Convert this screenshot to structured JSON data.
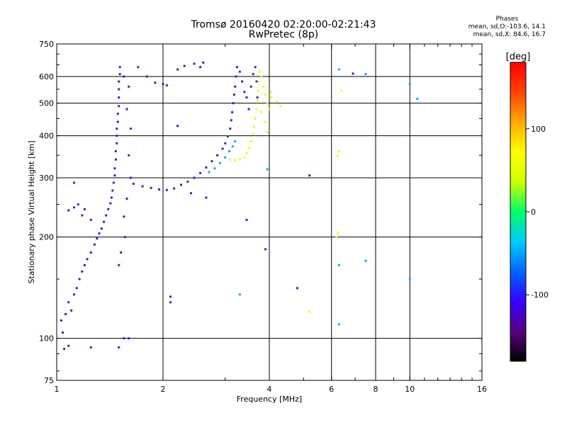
{
  "title": {
    "line1": "Tromsø 20160420 02:20:00-02:21:43",
    "line2": "RwPretec (8p)"
  },
  "stats_legend": {
    "heading": "Phases",
    "o_line": "mean, sd,O:-103.6, 14.1",
    "x_line": "mean, sd,X:  84.6, 16.7"
  },
  "chart_data": {
    "type": "scatter",
    "xlabel": "Frequency [MHz]",
    "ylabel": "Stationary phase Virtual Height [km]",
    "xscale": "log",
    "yscale": "log",
    "xlim": [
      1,
      16
    ],
    "ylim": [
      75,
      750
    ],
    "xticks": [
      1,
      2,
      4,
      6,
      8,
      10,
      16
    ],
    "xtick_labels": [
      "1",
      "2",
      "4",
      "6",
      "8",
      "10",
      "16"
    ],
    "xgrid": [
      2,
      4,
      6,
      8,
      10
    ],
    "yticks": [
      75,
      100,
      200,
      300,
      400,
      500,
      600,
      750
    ],
    "ytick_labels": [
      "75",
      "100",
      "200",
      "300",
      "400",
      "500",
      "600",
      "750"
    ],
    "ygrid": [
      100,
      200,
      300,
      400,
      500,
      600
    ],
    "grid": true,
    "colorbar": {
      "label": "[deg]",
      "range": [
        -180,
        180
      ],
      "ticks": [
        100,
        0,
        -100
      ],
      "tick_labels": [
        "100",
        "0",
        "-100"
      ],
      "colormap": [
        "#000000",
        "#5a0080",
        "#3300ff",
        "#0066ff",
        "#00ccff",
        "#00ff66",
        "#ccff00",
        "#ffff00",
        "#ffaa00",
        "#ff4400",
        "#ff0000"
      ]
    },
    "point_color_o": "#3a1fd0",
    "point_color_x": "#e8ff1a",
    "point_color_transition": "#1aa0ff",
    "series": [
      {
        "points": [
          [
            1.05,
            93
          ],
          [
            1.08,
            95
          ],
          [
            1.04,
            104
          ],
          [
            1.03,
            113
          ],
          [
            1.06,
            118
          ],
          [
            1.1,
            121
          ],
          [
            1.08,
            128
          ],
          [
            1.12,
            135
          ],
          [
            1.14,
            141
          ],
          [
            1.16,
            150
          ],
          [
            1.18,
            158
          ],
          [
            1.2,
            165
          ],
          [
            1.22,
            172
          ],
          [
            1.25,
            180
          ],
          [
            1.28,
            190
          ],
          [
            1.3,
            198
          ],
          [
            1.32,
            205
          ],
          [
            1.34,
            212
          ],
          [
            1.36,
            222
          ],
          [
            1.38,
            232
          ],
          [
            1.4,
            242
          ],
          [
            1.42,
            252
          ],
          [
            1.43,
            262
          ],
          [
            1.44,
            275
          ],
          [
            1.45,
            290
          ],
          [
            1.46,
            305
          ],
          [
            1.46,
            320
          ],
          [
            1.47,
            340
          ],
          [
            1.47,
            360
          ],
          [
            1.48,
            380
          ],
          [
            1.48,
            400
          ],
          [
            1.48,
            420
          ],
          [
            1.49,
            440
          ],
          [
            1.49,
            465
          ],
          [
            1.5,
            490
          ],
          [
            1.5,
            520
          ],
          [
            1.5,
            550
          ],
          [
            1.5,
            580
          ],
          [
            1.51,
            610
          ],
          [
            1.51,
            640
          ],
          [
            1.55,
            600
          ],
          [
            1.6,
            560
          ],
          [
            1.58,
            480
          ],
          [
            1.62,
            420
          ],
          [
            1.6,
            350
          ],
          [
            1.62,
            300
          ],
          [
            1.58,
            260
          ],
          [
            1.55,
            230
          ],
          [
            1.56,
            200
          ],
          [
            1.52,
            180
          ],
          [
            1.5,
            165
          ],
          [
            1.08,
            240
          ],
          [
            1.12,
            245
          ],
          [
            1.15,
            250
          ],
          [
            1.2,
            242
          ],
          [
            1.18,
            232
          ],
          [
            1.25,
            225
          ],
          [
            1.65,
            288
          ],
          [
            1.75,
            283
          ],
          [
            1.85,
            280
          ],
          [
            1.95,
            277
          ],
          [
            2.05,
            276
          ],
          [
            2.15,
            279
          ],
          [
            2.25,
            286
          ],
          [
            2.35,
            292
          ],
          [
            2.45,
            300
          ],
          [
            2.55,
            310
          ],
          [
            2.65,
            322
          ],
          [
            2.75,
            336
          ],
          [
            2.85,
            350
          ],
          [
            2.95,
            366
          ],
          [
            3.0,
            380
          ],
          [
            3.05,
            398
          ],
          [
            3.1,
            420
          ],
          [
            3.12,
            445
          ],
          [
            3.14,
            470
          ],
          [
            3.16,
            500
          ],
          [
            3.18,
            530
          ],
          [
            3.2,
            560
          ],
          [
            3.22,
            600
          ],
          [
            3.24,
            640
          ],
          [
            3.3,
            620
          ],
          [
            3.35,
            580
          ],
          [
            3.4,
            540
          ],
          [
            3.45,
            520
          ],
          [
            3.5,
            480
          ],
          [
            3.55,
            560
          ],
          [
            3.6,
            610
          ],
          [
            3.65,
            640
          ],
          [
            3.68,
            580
          ],
          [
            3.7,
            520
          ],
          [
            1.7,
            640
          ],
          [
            1.8,
            600
          ],
          [
            1.9,
            575
          ],
          [
            2.0,
            570
          ],
          [
            2.05,
            565
          ],
          [
            2.2,
            630
          ],
          [
            2.3,
            645
          ],
          [
            2.45,
            655
          ],
          [
            2.6,
            660
          ],
          [
            2.55,
            640
          ],
          [
            1.25,
            94
          ],
          [
            1.5,
            94
          ],
          [
            1.55,
            100
          ],
          [
            1.6,
            100
          ],
          [
            2.1,
            133
          ],
          [
            2.1,
            128
          ],
          [
            5.2,
            305
          ],
          [
            6.9,
            612
          ],
          [
            3.45,
            225
          ],
          [
            3.9,
            184
          ],
          [
            4.8,
            141
          ],
          [
            2.4,
            270
          ],
          [
            2.65,
            262
          ],
          [
            2.2,
            428
          ],
          [
            1.12,
            290
          ]
        ]
      },
      {
        "points": [
          [
            3.1,
            340
          ],
          [
            3.2,
            338
          ],
          [
            3.3,
            340
          ],
          [
            3.4,
            345
          ],
          [
            3.45,
            355
          ],
          [
            3.5,
            368
          ],
          [
            3.55,
            385
          ],
          [
            3.6,
            405
          ],
          [
            3.62,
            425
          ],
          [
            3.65,
            450
          ],
          [
            3.68,
            480
          ],
          [
            3.7,
            510
          ],
          [
            3.72,
            545
          ],
          [
            3.74,
            580
          ],
          [
            3.75,
            620
          ],
          [
            3.8,
            600
          ],
          [
            3.85,
            560
          ],
          [
            3.9,
            530
          ],
          [
            3.95,
            500
          ],
          [
            4.0,
            480
          ],
          [
            4.05,
            520
          ],
          [
            4.2,
            505
          ],
          [
            4.3,
            490
          ],
          [
            3.8,
            470
          ],
          [
            3.9,
            440
          ],
          [
            3.95,
            410
          ],
          [
            4.05,
            540
          ],
          [
            5.2,
            120
          ],
          [
            6.2,
            200
          ],
          [
            6.25,
            205
          ],
          [
            6.4,
            545
          ],
          [
            6.25,
            348
          ],
          [
            6.3,
            360
          ]
        ]
      },
      {
        "points": [
          [
            2.8,
            320
          ],
          [
            2.9,
            332
          ],
          [
            3.0,
            345
          ],
          [
            3.08,
            360
          ],
          [
            3.15,
            372
          ],
          [
            3.2,
            385
          ],
          [
            2.7,
            312
          ],
          [
            3.95,
            318
          ],
          [
            6.3,
            630
          ],
          [
            7.5,
            610
          ],
          [
            6.3,
            110
          ],
          [
            7.5,
            170
          ],
          [
            10.5,
            515
          ],
          [
            6.3,
            165
          ],
          [
            3.3,
            135
          ],
          [
            10,
            570
          ],
          [
            10,
            150
          ]
        ]
      }
    ]
  }
}
